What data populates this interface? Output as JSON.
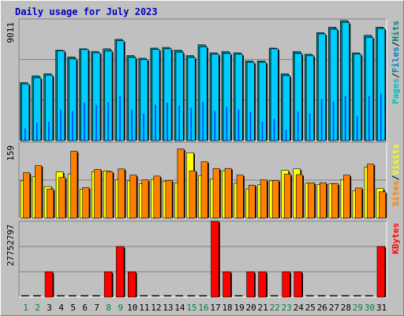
{
  "title": "Daily usage for July 2023",
  "colors": {
    "hits": "#00c0c0",
    "hits_dark": "#008080",
    "files": "#00ccff",
    "files_dark": "#0080c0",
    "pages": "#0040ff",
    "visits": "#ffff00",
    "sites": "#ff8000",
    "kbytes": "#ff0000",
    "background": "#c0c0c0",
    "weekend_label": "#008040",
    "weekday_label": "#000000"
  },
  "chart_data": [
    {
      "type": "bar",
      "panel": "hits-files-pages",
      "ymax_label": "9011",
      "ylim": [
        0,
        9011
      ],
      "legend": [
        {
          "text": "Pages",
          "color": "#00c0c0"
        },
        {
          "text": "/",
          "color": "#000000"
        },
        {
          "text": "Files",
          "color": "#0080c0"
        },
        {
          "text": "/",
          "color": "#000000"
        },
        {
          "text": "Hits",
          "color": "#008080"
        }
      ],
      "categories": [
        "1",
        "2",
        "3",
        "4",
        "5",
        "6",
        "7",
        "8",
        "9",
        "10",
        "11",
        "12",
        "13",
        "14",
        "15",
        "16",
        "17",
        "18",
        "19",
        "20",
        "21",
        "22",
        "23",
        "24",
        "25",
        "26",
        "27",
        "28",
        "29",
        "30",
        "31"
      ],
      "weekend_days": [
        "1",
        "2",
        "8",
        "9",
        "15",
        "16",
        "22",
        "23",
        "29",
        "30"
      ],
      "series": [
        {
          "name": "Hits",
          "values": [
            4300,
            4800,
            4950,
            6700,
            6200,
            6800,
            6600,
            6800,
            7500,
            6300,
            6100,
            6850,
            6900,
            6700,
            6300,
            7100,
            6500,
            6600,
            6500,
            5900,
            5900,
            6850,
            4950,
            6600,
            6400,
            8000,
            8400,
            8900,
            6500,
            7800,
            8400
          ]
        },
        {
          "name": "Files",
          "values": [
            4200,
            4650,
            4850,
            6650,
            6050,
            6750,
            6500,
            6650,
            7400,
            6150,
            6000,
            6750,
            6800,
            6550,
            6150,
            6950,
            6400,
            6450,
            6400,
            5800,
            5800,
            6800,
            4800,
            6450,
            6300,
            7900,
            8250,
            8750,
            6400,
            7650,
            8300
          ]
        },
        {
          "name": "Pages",
          "values": [
            900,
            1300,
            1400,
            2300,
            2200,
            2800,
            2650,
            2850,
            3300,
            2300,
            2000,
            2650,
            2800,
            2600,
            2450,
            2850,
            2200,
            2500,
            2300,
            2100,
            1400,
            1600,
            800,
            2150,
            2000,
            3100,
            2900,
            3300,
            1800,
            3300,
            3500
          ]
        }
      ]
    },
    {
      "type": "bar",
      "panel": "visits-sites",
      "ymax_label": "159",
      "ylim": [
        0,
        159
      ],
      "legend": [
        {
          "text": "Sites",
          "color": "#ff8000"
        },
        {
          "text": "/",
          "color": "#000000"
        },
        {
          "text": "Visits",
          "color": "#ffff00"
        }
      ],
      "categories": [
        "1",
        "2",
        "3",
        "4",
        "5",
        "6",
        "7",
        "8",
        "9",
        "10",
        "11",
        "12",
        "13",
        "14",
        "15",
        "16",
        "17",
        "18",
        "19",
        "20",
        "21",
        "22",
        "23",
        "24",
        "25",
        "26",
        "27",
        "28",
        "29",
        "30",
        "31"
      ],
      "series": [
        {
          "name": "Visits",
          "values": [
            78,
            87,
            66,
            97,
            92,
            60,
            97,
            99,
            80,
            78,
            72,
            81,
            77,
            74,
            137,
            89,
            82,
            99,
            73,
            61,
            70,
            78,
            100,
            103,
            73,
            70,
            72,
            80,
            57,
            107,
            62
          ]
        },
        {
          "name": "Sites",
          "values": [
            95,
            110,
            61,
            85,
            140,
            64,
            102,
            97,
            103,
            90,
            80,
            88,
            79,
            145,
            99,
            118,
            104,
            104,
            90,
            69,
            80,
            79,
            92,
            91,
            74,
            74,
            72,
            90,
            63,
            113,
            55
          ]
        }
      ]
    },
    {
      "type": "bar",
      "panel": "kbytes",
      "ymax_label": "27752797",
      "ylim": [
        0,
        27752797
      ],
      "legend": [
        {
          "text": "KBytes",
          "color": "#ff0000"
        }
      ],
      "categories": [
        "1",
        "2",
        "3",
        "4",
        "5",
        "6",
        "7",
        "8",
        "9",
        "10",
        "11",
        "12",
        "13",
        "14",
        "15",
        "16",
        "17",
        "18",
        "19",
        "20",
        "21",
        "22",
        "23",
        "24",
        "25",
        "26",
        "27",
        "28",
        "29",
        "30",
        "31"
      ],
      "series": [
        {
          "name": "KBytes",
          "values": [
            0,
            0,
            9250932,
            0,
            0,
            0,
            0,
            9250932,
            18501865,
            9250932,
            0,
            0,
            0,
            0,
            0,
            0,
            27752797,
            9250932,
            0,
            9250932,
            9250932,
            0,
            9250932,
            9250932,
            0,
            0,
            0,
            0,
            0,
            0,
            18501865
          ]
        }
      ]
    }
  ]
}
